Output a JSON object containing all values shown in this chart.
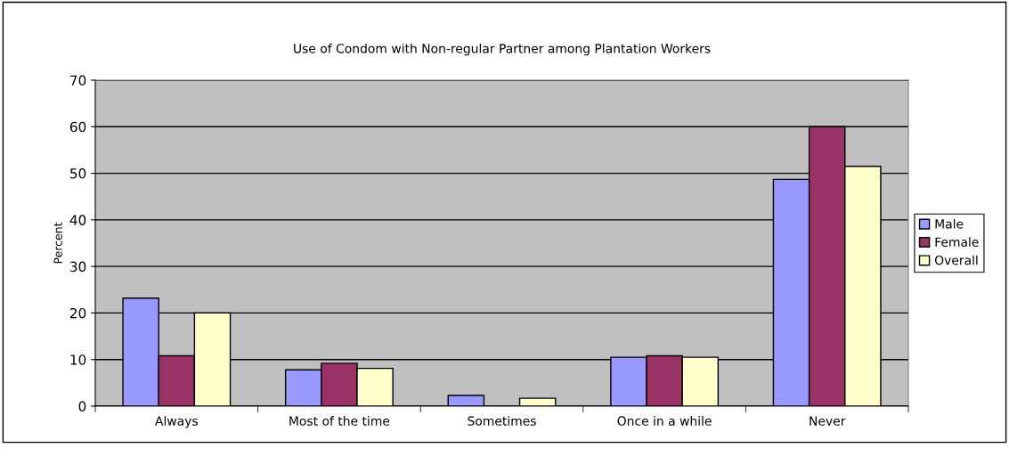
{
  "chart_data": {
    "type": "bar",
    "title": "Use of Condom with Non-regular Partner among Plantation Workers",
    "ylabel": "Percent",
    "categories": [
      "Always",
      "Most of the time",
      "Sometimes",
      "Once in a while",
      "Never"
    ],
    "series": [
      {
        "name": "Male",
        "color": "#9999ff",
        "values": [
          23.2,
          7.8,
          2.3,
          10.5,
          48.7
        ]
      },
      {
        "name": "Female",
        "color": "#993366",
        "values": [
          10.8,
          9.2,
          null,
          10.8,
          60
        ]
      },
      {
        "name": "Overall",
        "color": "#ffffcc",
        "values": [
          20,
          8.1,
          1.7,
          10.5,
          51.5
        ]
      }
    ],
    "ylim": [
      0,
      70
    ],
    "yticks": [
      0,
      10,
      20,
      30,
      40,
      50,
      60,
      70
    ],
    "grid": "y",
    "legend": "right"
  }
}
